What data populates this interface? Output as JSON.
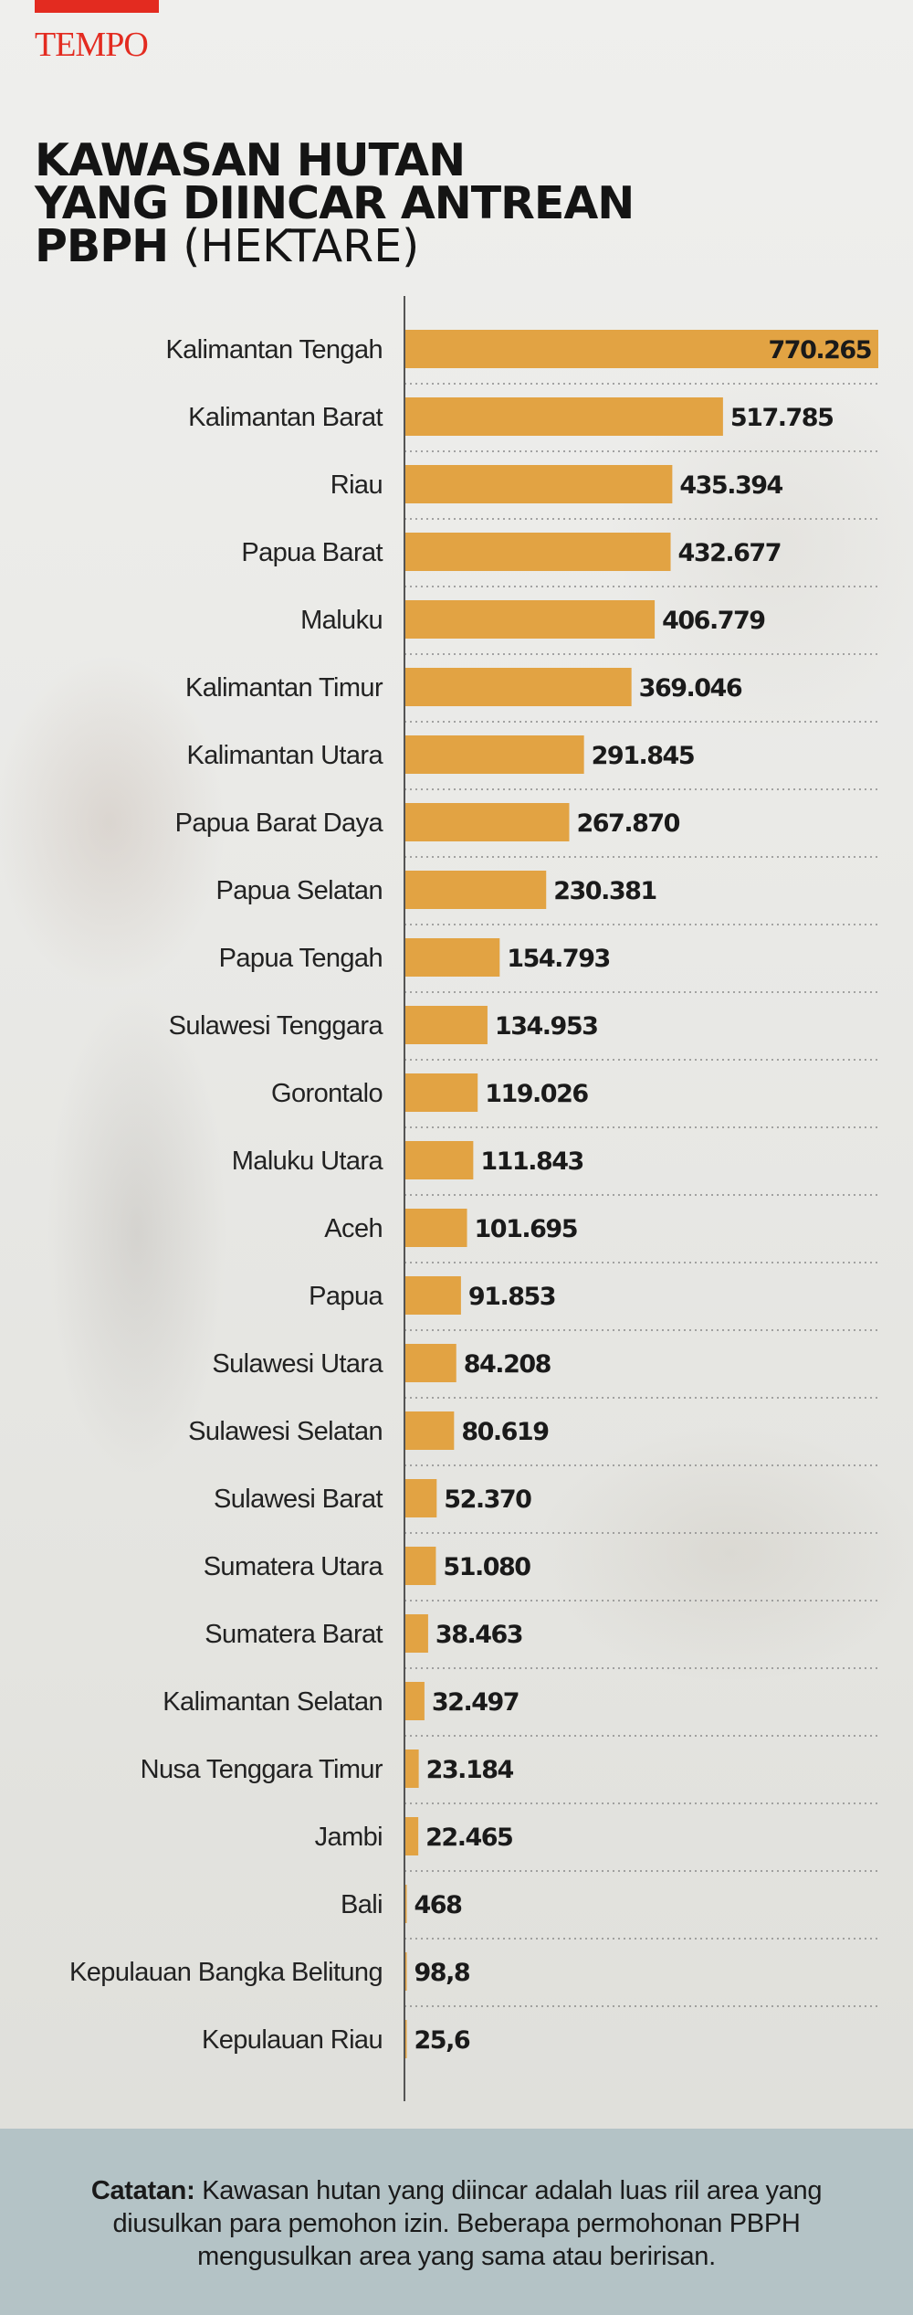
{
  "brand": {
    "name": "TEMPO",
    "color": "#e32b20"
  },
  "title": {
    "line1": "KAWASAN HUTAN",
    "line2": "YANG DIINCAR ANTREAN",
    "line3": "PBPH",
    "unit": "(HEKTARE)"
  },
  "colors": {
    "bar": "#e2a343",
    "axis": "#555555",
    "footer_bg": "#b4c3c6"
  },
  "chart_data": {
    "type": "bar",
    "orientation": "horizontal",
    "categories": [
      "Kalimantan Tengah",
      "Kalimantan Barat",
      "Riau",
      "Papua Barat",
      "Maluku",
      "Kalimantan Timur",
      "Kalimantan Utara",
      "Papua Barat Daya",
      "Papua Selatan",
      "Papua Tengah",
      "Sulawesi Tenggara",
      "Gorontalo",
      "Maluku Utara",
      "Aceh",
      "Papua",
      "Sulawesi Utara",
      "Sulawesi Selatan",
      "Sulawesi Barat",
      "Sumatera Utara",
      "Sumatera Barat",
      "Kalimantan Selatan",
      "Nusa Tenggara Timur",
      "Jambi",
      "Bali",
      "Kepulauan Bangka Belitung",
      "Kepulauan Riau"
    ],
    "values": [
      770265,
      517785,
      435394,
      432677,
      406779,
      369046,
      291845,
      267870,
      230381,
      154793,
      134953,
      119026,
      111843,
      101695,
      91853,
      84208,
      80619,
      52370,
      51080,
      38463,
      32497,
      23184,
      22465,
      468,
      98.8,
      25.6
    ],
    "labels": [
      "770.265",
      "517.785",
      "435.394",
      "432.677",
      "406.779",
      "369.046",
      "291.845",
      "267.870",
      "230.381",
      "154.793",
      "134.953",
      "119.026",
      "111.843",
      "101.695",
      "91.853",
      "84.208",
      "80.619",
      "52.370",
      "51.080",
      "38.463",
      "32.497",
      "23.184",
      "22.465",
      "468",
      "98,8",
      "25,6"
    ],
    "xlim": [
      0,
      770265
    ],
    "grid": "dotted row separators",
    "legend": "none"
  },
  "footer": {
    "note_label": "Catatan:",
    "note_text": "Kawasan hutan yang diincar adalah luas riil area yang diusulkan para pemohon izin. Beberapa permohonan PBPH mengusulkan area yang sama atau beririsan."
  }
}
